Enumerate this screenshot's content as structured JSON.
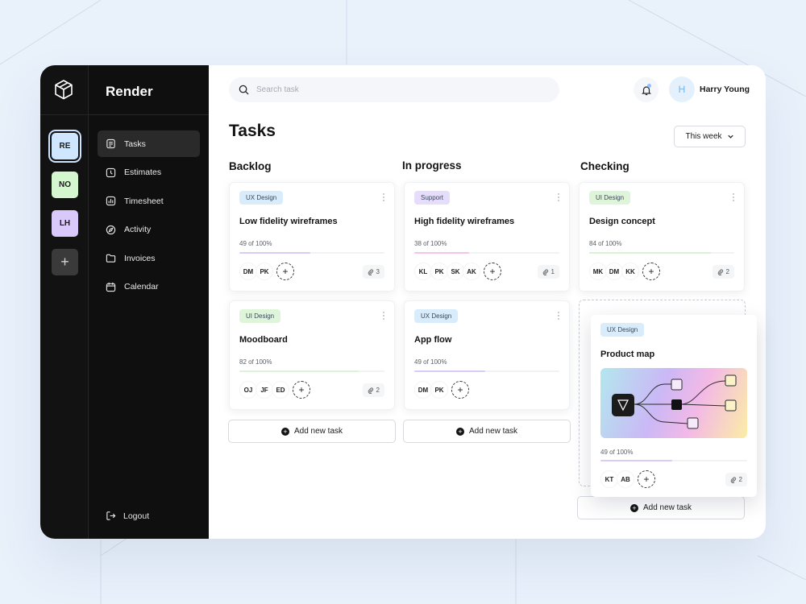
{
  "sidebar": {
    "app_name": "Render",
    "workspaces": [
      {
        "label": "RE",
        "color": "#cfe6ff"
      },
      {
        "label": "NO",
        "color": "#d4f7cf"
      },
      {
        "label": "LH",
        "color": "#d9c9fb"
      }
    ],
    "nav": [
      {
        "label": "Tasks",
        "icon": "document-icon"
      },
      {
        "label": "Estimates",
        "icon": "clock-icon"
      },
      {
        "label": "Timesheet",
        "icon": "chart-icon"
      },
      {
        "label": "Activity",
        "icon": "compass-icon"
      },
      {
        "label": "Invoices",
        "icon": "folder-icon"
      },
      {
        "label": "Calendar",
        "icon": "calendar-icon"
      }
    ],
    "logout": "Logout"
  },
  "header": {
    "search_placeholder": "Search task",
    "user_initial": "H",
    "user_name": "Harry Young"
  },
  "page": {
    "title": "Tasks",
    "filter": "This week"
  },
  "columns": [
    {
      "title": "Backlog"
    },
    {
      "title": "In progress"
    },
    {
      "title": "Checking"
    }
  ],
  "cards": {
    "c1": {
      "tag": "UX Design",
      "tag_color": "#d9ecfb",
      "title": "Low fidelity wireframes",
      "progress": "49 of 100%",
      "fill": 0.49,
      "fill_color": "#d8ccf7",
      "people": [
        "DM",
        "PK"
      ],
      "attachments": "3"
    },
    "c2": {
      "tag": "Support",
      "tag_color": "#e6dcfb",
      "title": "High fidelity wireframes",
      "progress": "38 of 100%",
      "fill": 0.38,
      "fill_color": "#f4c4ea",
      "people": [
        "KL",
        "PK",
        "SK",
        "AK"
      ],
      "attachments": "1"
    },
    "c3": {
      "tag": "UI Design",
      "tag_color": "#dff5da",
      "title": "Design concept",
      "progress": "84 of 100%",
      "fill": 0.84,
      "fill_color": "#d9f2d4",
      "people": [
        "MK",
        "DM",
        "KK"
      ],
      "attachments": "2"
    },
    "c4": {
      "tag": "UI Design",
      "tag_color": "#dff5da",
      "title": "Moodboard",
      "progress": "82 of 100%",
      "fill": 0.82,
      "fill_color": "#ddf3d8",
      "people": [
        "OJ",
        "JF",
        "ED"
      ],
      "attachments": "2"
    },
    "c5": {
      "tag": "UX Design",
      "tag_color": "#d9ecfb",
      "title": "App flow",
      "progress": "49 of 100%",
      "fill": 0.49,
      "fill_color": "#d8ccf7",
      "people": [
        "DM",
        "PK"
      ]
    },
    "c6": {
      "tag": "UX Design",
      "tag_color": "#d9ecfb",
      "title": "Product map",
      "progress": "49 of 100%",
      "fill": 0.49,
      "fill_color": "#d8ccf7",
      "people": [
        "KT",
        "AB"
      ],
      "attachments": "2"
    }
  },
  "add_task_label": "Add new task"
}
